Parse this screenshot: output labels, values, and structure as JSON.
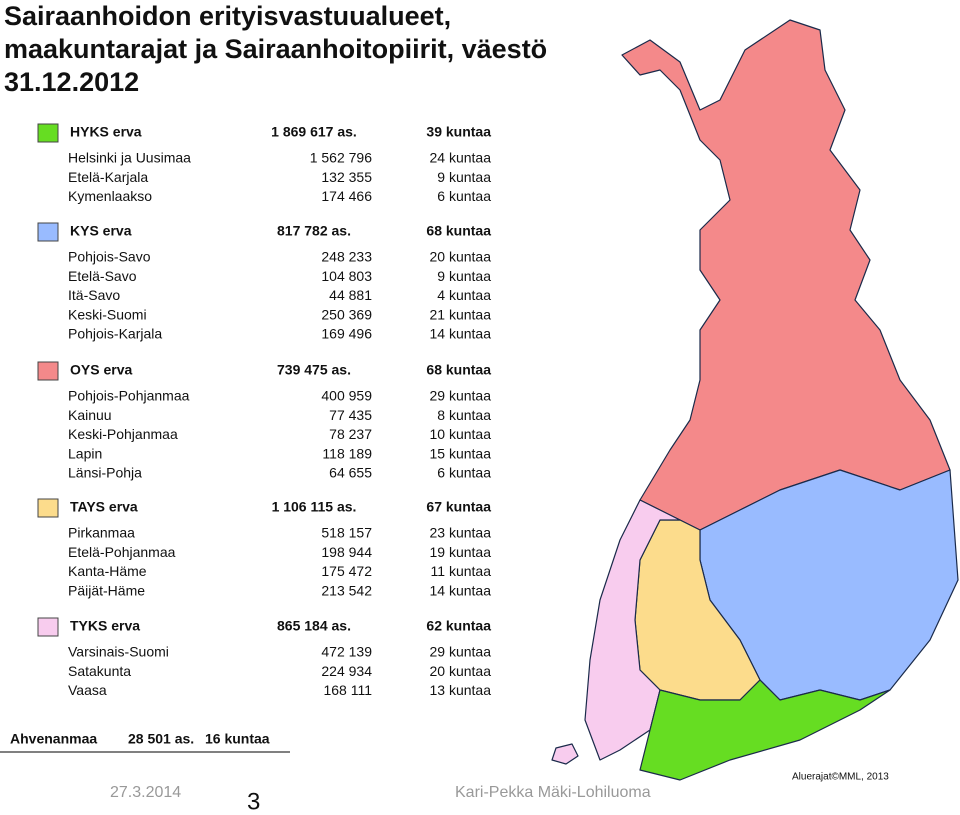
{
  "title": {
    "lines": [
      "Sairaanhoidon erityisvastuualueet,",
      "maakuntarajat ja Sairaanhoitopiirit, väestö",
      "31.12.2012"
    ]
  },
  "groups": [
    {
      "name": "HYKS erva",
      "population": "1 869 617 as.",
      "municipalities": "39 kuntaa",
      "color": "#66dd22",
      "districts": [
        {
          "name": "Helsinki ja Uusimaa",
          "population": "1 562 796",
          "municipalities": "24 kuntaa"
        },
        {
          "name": "Etelä-Karjala",
          "population": "132 355",
          "municipalities": "9 kuntaa"
        },
        {
          "name": "Kymenlaakso",
          "population": "174 466",
          "municipalities": "6 kuntaa"
        }
      ]
    },
    {
      "name": "KYS erva",
      "population": "817 782 as.",
      "municipalities": "68 kuntaa",
      "color": "#99bbff",
      "districts": [
        {
          "name": "Pohjois-Savo",
          "population": "248 233",
          "municipalities": "20 kuntaa"
        },
        {
          "name": "Etelä-Savo",
          "population": "104 803",
          "municipalities": "9 kuntaa"
        },
        {
          "name": "Itä-Savo",
          "population": "44 881",
          "municipalities": "4 kuntaa"
        },
        {
          "name": "Keski-Suomi",
          "population": "250 369",
          "municipalities": "21 kuntaa"
        },
        {
          "name": "Pohjois-Karjala",
          "population": "169 496",
          "municipalities": "14 kuntaa"
        }
      ]
    },
    {
      "name": "OYS erva",
      "population": "739 475 as.",
      "municipalities": "68 kuntaa",
      "color": "#f4898a",
      "districts": [
        {
          "name": "Pohjois-Pohjanmaa",
          "population": "400 959",
          "municipalities": "29 kuntaa"
        },
        {
          "name": "Kainuu",
          "population": "77 435",
          "municipalities": "8 kuntaa"
        },
        {
          "name": "Keski-Pohjanmaa",
          "population": "78 237",
          "municipalities": "10 kuntaa"
        },
        {
          "name": "Lapin",
          "population": "118 189",
          "municipalities": "15 kuntaa"
        },
        {
          "name": "Länsi-Pohja",
          "population": "64 655",
          "municipalities": "6 kuntaa"
        }
      ]
    },
    {
      "name": "TAYS erva",
      "population": "1 106 115 as.",
      "municipalities": "67 kuntaa",
      "color": "#fcdc8c",
      "districts": [
        {
          "name": "Pirkanmaa",
          "population": "518 157",
          "municipalities": "23 kuntaa"
        },
        {
          "name": "Etelä-Pohjanmaa",
          "population": "198 944",
          "municipalities": "19 kuntaa"
        },
        {
          "name": "Kanta-Häme",
          "population": "175 472",
          "municipalities": "11 kuntaa"
        },
        {
          "name": "Päijät-Häme",
          "population": "213 542",
          "municipalities": "14 kuntaa"
        }
      ]
    },
    {
      "name": "TYKS erva",
      "population": "865 184 as.",
      "municipalities": "62 kuntaa",
      "color": "#f8ccee",
      "districts": [
        {
          "name": "Varsinais-Suomi",
          "population": "472 139",
          "municipalities": "29 kuntaa"
        },
        {
          "name": "Satakunta",
          "population": "224 934",
          "municipalities": "20 kuntaa"
        },
        {
          "name": "Vaasa",
          "population": "168 111",
          "municipalities": "13 kuntaa"
        }
      ]
    }
  ],
  "aland": {
    "name": "Ahvenanmaa",
    "population": "28 501 as.",
    "municipalities": "16 kuntaa"
  },
  "footer": {
    "date": "27.3.2014",
    "page": "3",
    "author": "Kari-Pekka Mäki-Lohiluoma",
    "credit": "Aluerajat©MML, 2013"
  }
}
